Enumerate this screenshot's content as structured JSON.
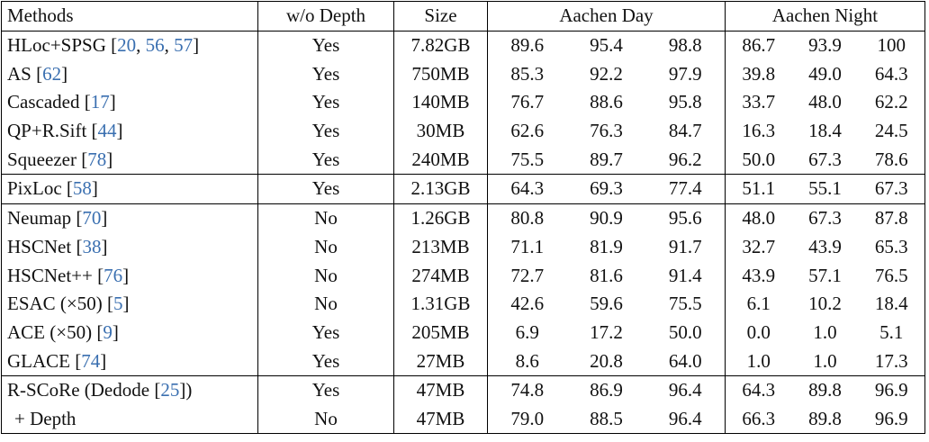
{
  "headers": {
    "methods": "Methods",
    "depth": "w/o Depth",
    "size": "Size",
    "day": "Aachen Day",
    "night": "Aachen Night"
  },
  "rows": [
    {
      "name": "HLoc+SPSG ",
      "lb": "[",
      "cites": [
        "20",
        "56",
        "57"
      ],
      "rb": "]",
      "tail": "",
      "depth": "Yes",
      "size": "7.82GB",
      "vals": [
        "89.6",
        "95.4",
        "98.8",
        "86.7",
        "93.9",
        "100"
      ]
    },
    {
      "name": "AS ",
      "lb": "[",
      "cites": [
        "62"
      ],
      "rb": "]",
      "tail": "",
      "depth": "Yes",
      "size": "750MB",
      "vals": [
        "85.3",
        "92.2",
        "97.9",
        "39.8",
        "49.0",
        "64.3"
      ]
    },
    {
      "name": "Cascaded ",
      "lb": "[",
      "cites": [
        "17"
      ],
      "rb": "]",
      "tail": "",
      "depth": "Yes",
      "size": "140MB",
      "vals": [
        "76.7",
        "88.6",
        "95.8",
        "33.7",
        "48.0",
        "62.2"
      ]
    },
    {
      "name": "QP+R.Sift ",
      "lb": "[",
      "cites": [
        "44"
      ],
      "rb": "]",
      "tail": "",
      "depth": "Yes",
      "size": "30MB",
      "vals": [
        "62.6",
        "76.3",
        "84.7",
        "16.3",
        "18.4",
        "24.5"
      ]
    },
    {
      "name": "Squeezer ",
      "lb": "[",
      "cites": [
        "78"
      ],
      "rb": "]",
      "tail": "",
      "depth": "Yes",
      "size": "240MB",
      "vals": [
        "75.5",
        "89.7",
        "96.2",
        "50.0",
        "67.3",
        "78.6"
      ]
    },
    {
      "name": "PixLoc ",
      "lb": "[",
      "cites": [
        "58"
      ],
      "rb": "]",
      "tail": "",
      "depth": "Yes",
      "size": "2.13GB",
      "vals": [
        "64.3",
        "69.3",
        "77.4",
        "51.1",
        "55.1",
        "67.3"
      ]
    },
    {
      "name": "Neumap ",
      "lb": "[",
      "cites": [
        "70"
      ],
      "rb": "]",
      "tail": "",
      "depth": "No",
      "size": "1.26GB",
      "vals": [
        "80.8",
        "90.9",
        "95.6",
        "48.0",
        "67.3",
        "87.8"
      ]
    },
    {
      "name": "HSCNet ",
      "lb": "[",
      "cites": [
        "38"
      ],
      "rb": "]",
      "tail": "",
      "depth": "No",
      "size": "213MB",
      "vals": [
        "71.1",
        "81.9",
        "91.7",
        "32.7",
        "43.9",
        "65.3"
      ]
    },
    {
      "name": "HSCNet++ ",
      "lb": "[",
      "cites": [
        "76"
      ],
      "rb": "]",
      "tail": "",
      "depth": "No",
      "size": "274MB",
      "vals": [
        "72.7",
        "81.6",
        "91.4",
        "43.9",
        "57.1",
        "76.5"
      ]
    },
    {
      "name": "ESAC (×50) ",
      "lb": "[",
      "cites": [
        "5"
      ],
      "rb": "]",
      "tail": "",
      "depth": "No",
      "size": "1.31GB",
      "vals": [
        "42.6",
        "59.6",
        "75.5",
        "6.1",
        "10.2",
        "18.4"
      ]
    },
    {
      "name": "ACE (×50) ",
      "lb": "[",
      "cites": [
        "9"
      ],
      "rb": "]",
      "tail": "",
      "depth": "Yes",
      "size": "205MB",
      "vals": [
        "6.9",
        "17.2",
        "50.0",
        "0.0",
        "1.0",
        "5.1"
      ]
    },
    {
      "name": "GLACE ",
      "lb": "[",
      "cites": [
        "74"
      ],
      "rb": "]",
      "tail": "",
      "depth": "Yes",
      "size": "27MB",
      "vals": [
        "8.6",
        "20.8",
        "64.0",
        "1.0",
        "1.0",
        "17.3"
      ]
    },
    {
      "name": "R-SCoRe (Dedode ",
      "lb": "[",
      "cites": [
        "25"
      ],
      "rb": "]",
      "tail": ")",
      "depth": "Yes",
      "size": "47MB",
      "vals": [
        "74.8",
        "86.9",
        "96.4",
        "64.3",
        "89.8",
        "96.9"
      ]
    },
    {
      "name": "+ Depth",
      "lb": "",
      "cites": [],
      "rb": "",
      "tail": "",
      "depth": "No",
      "size": "47MB",
      "vals": [
        "79.0",
        "88.5",
        "96.4",
        "66.3",
        "89.8",
        "96.9"
      ]
    }
  ],
  "colors": {
    "citation": "#3a6fb0",
    "text": "#111111",
    "rule": "#000000"
  }
}
